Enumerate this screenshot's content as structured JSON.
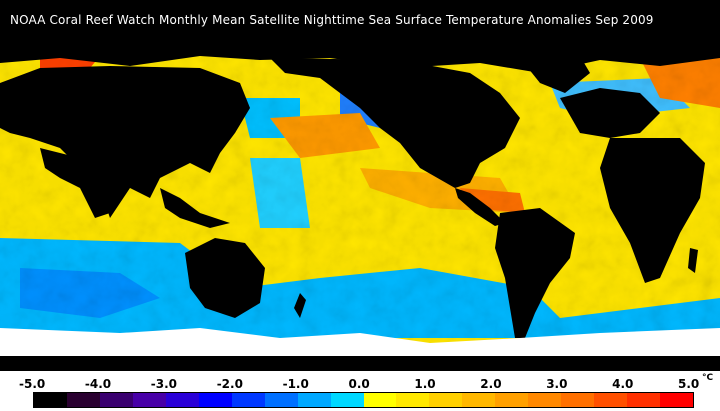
{
  "title": "NOAA Coral Reef Watch Monthly Mean Satellite Nighttime Sea Surface Temperature Anomalies    Sep 2009",
  "legend": {
    "ticks": [
      "-5.0",
      "-4.0",
      "-3.0",
      "-2.0",
      "-1.0",
      "0.0",
      "1.0",
      "2.0",
      "3.0",
      "4.0",
      "5.0"
    ],
    "unit": "°C",
    "colors": [
      "#000000",
      "#2a0030",
      "#3a0070",
      "#4800a8",
      "#2a00d8",
      "#0000ff",
      "#0038ff",
      "#0070ff",
      "#00a8ff",
      "#00d8ff",
      "#ffff00",
      "#ffe800",
      "#ffd000",
      "#ffb800",
      "#ffa000",
      "#ff8800",
      "#ff7000",
      "#ff5000",
      "#ff3000",
      "#ff0000"
    ]
  },
  "map": {
    "land_color": "#000000",
    "ice_color": "#ffffff",
    "ocean_palette": [
      "#0040ff",
      "#0080ff",
      "#00c0ff",
      "#00e0ff",
      "#ffff00",
      "#ffe000",
      "#ffc000",
      "#ff9000",
      "#ff5000",
      "#ff0000"
    ]
  }
}
